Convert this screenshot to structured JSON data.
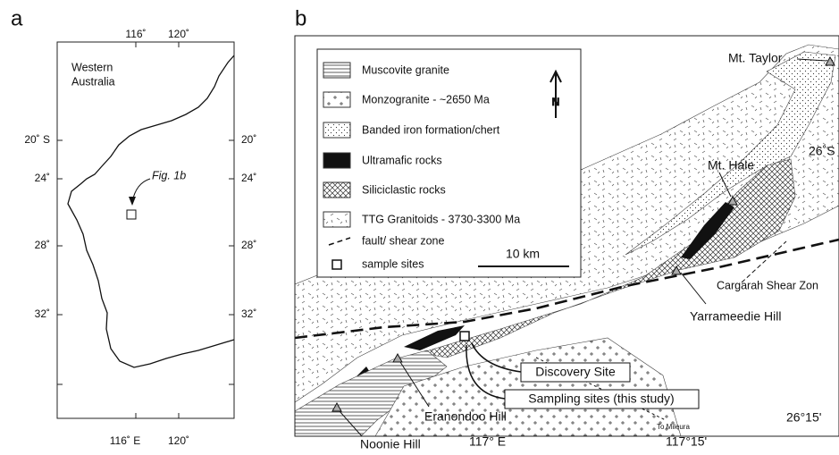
{
  "panel_a": {
    "label": "a",
    "top_ticks": [
      "116˚",
      "120˚"
    ],
    "left_ticks": [
      "20˚ S",
      "24˚",
      "28˚",
      "32˚"
    ],
    "right_ticks": [
      "20˚",
      "24˚",
      "28˚",
      "32˚"
    ],
    "bottom_ticks": [
      "116˚ E",
      "120˚"
    ],
    "region_label": [
      "Western",
      "Australia"
    ],
    "callout": "Fig. 1b"
  },
  "panel_b": {
    "label": "b",
    "legend": [
      "Muscovite granite",
      "Monzogranite - ~2650 Ma",
      "Banded iron formation/chert",
      "Ultramafic rocks",
      "Siliciclastic rocks",
      "TTG Granitoids - 3730-3300 Ma",
      "fault/ shear zone",
      "sample sites"
    ],
    "north": "N",
    "scale": "10 km",
    "places": [
      "Mt. Taylor",
      "Mt. Hale",
      "Cargarah Shear Zon",
      "Yarrameedie Hill",
      "Eranondoo Hill",
      "To Mileura",
      "Noonie Hill"
    ],
    "boxed_labels": [
      "Discovery Site",
      "Sampling sites (this study)"
    ],
    "coordinates": [
      "26˚S",
      "117° E",
      "117°15'",
      "26°15'"
    ]
  }
}
